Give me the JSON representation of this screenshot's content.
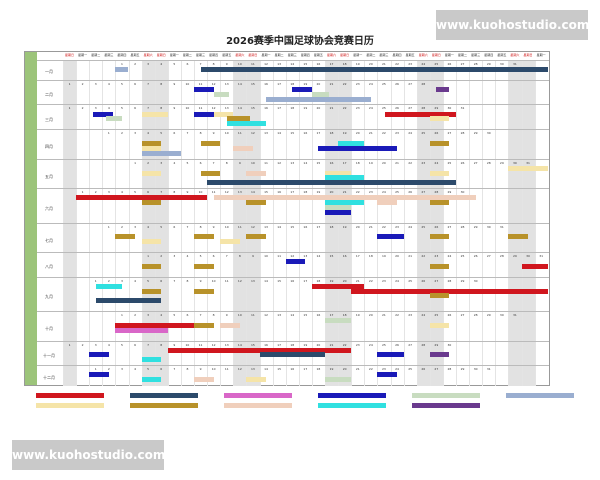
{
  "title": "2026赛季中国足球协会竞赛日历",
  "year": 2026,
  "watermark": "www.kuohostudio.com",
  "weekdays": [
    "星期日",
    "星期一",
    "星期二",
    "星期三",
    "星期四",
    "星期五",
    "星期六"
  ],
  "months": [
    {
      "label": "一月",
      "rows": 3
    },
    {
      "label": "二月",
      "rows": 4
    },
    {
      "label": "三月",
      "rows": 4
    },
    {
      "label": "四月",
      "rows": 5
    },
    {
      "label": "五月",
      "rows": 5
    },
    {
      "label": "六月",
      "rows": 6
    },
    {
      "label": "七月",
      "rows": 5
    },
    {
      "label": "八月",
      "rows": 4
    },
    {
      "label": "九月",
      "rows": 6
    },
    {
      "label": "十月",
      "rows": 5
    },
    {
      "label": "十一月",
      "rows": 4
    },
    {
      "label": "十二月",
      "rows": 3
    }
  ],
  "colors": {
    "red": "#d0161e",
    "navy": "#2c4a6b",
    "pink": "#d967c8",
    "blue": "#1a1ab8",
    "green": "#c8dcc0",
    "greyblue": "#9aaed0",
    "yellow": "#f5e4a8",
    "gold": "#b8922a",
    "peach": "#f0cfbc",
    "cyan": "#30e0e0",
    "purple": "#6a3a8e"
  },
  "legend": [
    "red",
    "navy",
    "pink",
    "blue",
    "green",
    "greyblue",
    "yellow",
    "gold",
    "peach",
    "cyan",
    "purple"
  ],
  "bars": [
    [
      0,
      4,
      1,
      0,
      "greyblue"
    ],
    [
      0,
      10.5,
      26.5,
      0,
      "navy"
    ],
    [
      1,
      10,
      1.5,
      0,
      "blue"
    ],
    [
      1,
      11.5,
      1.2,
      1,
      "green"
    ],
    [
      1,
      17.5,
      1.5,
      0,
      "blue"
    ],
    [
      1,
      19,
      1.3,
      1,
      "green"
    ],
    [
      1,
      15.5,
      8,
      2,
      "greyblue"
    ],
    [
      1,
      28.5,
      1,
      0,
      "purple"
    ],
    [
      2,
      2.3,
      1.5,
      0,
      "blue"
    ],
    [
      2,
      3.3,
      1.2,
      1,
      "green"
    ],
    [
      2,
      6,
      2,
      0,
      "yellow"
    ],
    [
      2,
      10,
      1.5,
      0,
      "blue"
    ],
    [
      2,
      11.5,
      1.5,
      0,
      "yellow"
    ],
    [
      2,
      12.5,
      1.8,
      1,
      "gold"
    ],
    [
      2,
      12.5,
      3,
      2,
      "cyan"
    ],
    [
      2,
      24.6,
      5.4,
      0,
      "red"
    ],
    [
      2,
      28,
      1.5,
      1,
      "yellow"
    ],
    [
      3,
      6,
      1.5,
      1,
      "gold"
    ],
    [
      3,
      6,
      1.5,
      2,
      "yellow"
    ],
    [
      3,
      10.5,
      1.5,
      1,
      "gold"
    ],
    [
      3,
      13,
      1.5,
      2,
      "peach"
    ],
    [
      3,
      19.5,
      6,
      2,
      "blue"
    ],
    [
      3,
      21,
      2,
      1,
      "cyan"
    ],
    [
      3,
      28,
      1.5,
      1,
      "gold"
    ],
    [
      3,
      6,
      3,
      3,
      "greyblue"
    ],
    [
      4,
      6,
      1.5,
      1,
      "yellow"
    ],
    [
      4,
      10.5,
      1.5,
      1,
      "gold"
    ],
    [
      4,
      14,
      1.5,
      1,
      "peach"
    ],
    [
      4,
      20,
      2,
      1,
      "yellow"
    ],
    [
      4,
      20,
      3,
      2,
      "cyan"
    ],
    [
      4,
      11,
      19,
      3,
      "navy"
    ],
    [
      4,
      28,
      1.5,
      1,
      "yellow"
    ],
    [
      4,
      34,
      3,
      0,
      "yellow"
    ],
    [
      5,
      1,
      10,
      0,
      "red"
    ],
    [
      5,
      11.5,
      20,
      0,
      "peach"
    ],
    [
      5,
      6,
      1.5,
      1,
      "gold"
    ],
    [
      5,
      14,
      1.5,
      1,
      "gold"
    ],
    [
      5,
      20,
      3,
      1,
      "cyan"
    ],
    [
      5,
      20,
      2,
      2,
      "green"
    ],
    [
      5,
      24,
      1.5,
      1,
      "peach"
    ],
    [
      5,
      28,
      1.5,
      1,
      "gold"
    ],
    [
      5,
      20,
      2,
      3,
      "blue"
    ],
    [
      6,
      4,
      1.5,
      1,
      "gold"
    ],
    [
      6,
      10,
      1.5,
      1,
      "gold"
    ],
    [
      6,
      14,
      1.5,
      1,
      "gold"
    ],
    [
      6,
      24,
      2,
      1,
      "blue"
    ],
    [
      6,
      28,
      1.5,
      1,
      "gold"
    ],
    [
      6,
      34,
      1.5,
      1,
      "gold"
    ],
    [
      6,
      6,
      1.5,
      2,
      "yellow"
    ],
    [
      6,
      12,
      1.5,
      2,
      "yellow"
    ],
    [
      7,
      6,
      1.5,
      1,
      "gold"
    ],
    [
      7,
      10,
      1.5,
      1,
      "gold"
    ],
    [
      7,
      17,
      1.5,
      0,
      "blue"
    ],
    [
      7,
      28,
      1.5,
      1,
      "gold"
    ],
    [
      7,
      35,
      2,
      1,
      "red"
    ],
    [
      8,
      2.5,
      2,
      0,
      "cyan"
    ],
    [
      8,
      6,
      1.5,
      1,
      "gold"
    ],
    [
      8,
      10,
      1.5,
      1,
      "gold"
    ],
    [
      8,
      19,
      4,
      0,
      "red"
    ],
    [
      8,
      22,
      15,
      1,
      "red"
    ],
    [
      8,
      2.5,
      5,
      3,
      "navy"
    ],
    [
      8,
      28,
      1.5,
      2,
      "gold"
    ],
    [
      9,
      4,
      6,
      1,
      "red"
    ],
    [
      9,
      4,
      4,
      2,
      "pink"
    ],
    [
      9,
      10,
      1.5,
      1,
      "gold"
    ],
    [
      9,
      12,
      1.5,
      1,
      "peach"
    ],
    [
      9,
      28,
      1.5,
      1,
      "yellow"
    ],
    [
      9,
      20,
      2,
      0,
      "green"
    ],
    [
      10,
      2,
      1.5,
      1,
      "blue"
    ],
    [
      10,
      8,
      14,
      0,
      "red"
    ],
    [
      10,
      15,
      5,
      1,
      "navy"
    ],
    [
      10,
      24,
      2,
      1,
      "blue"
    ],
    [
      10,
      28,
      1.5,
      1,
      "purple"
    ],
    [
      10,
      6,
      1.5,
      2,
      "cyan"
    ],
    [
      11,
      2,
      1.5,
      0,
      "blue"
    ],
    [
      11,
      6,
      1.5,
      1,
      "cyan"
    ],
    [
      11,
      10,
      1.5,
      1,
      "peach"
    ],
    [
      11,
      20,
      2,
      1,
      "green"
    ],
    [
      11,
      24,
      1.5,
      0,
      "blue"
    ],
    [
      11,
      14,
      1.5,
      1,
      "yellow"
    ]
  ]
}
